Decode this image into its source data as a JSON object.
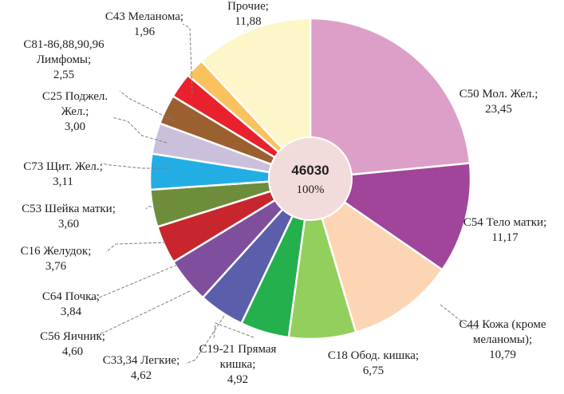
{
  "chart_data": {
    "type": "pie",
    "variant": "doughnut",
    "center": {
      "total": "46030",
      "percent": "100%"
    },
    "slices": [
      {
        "name_lines": [
          "C50 Мол. Жел.;"
        ],
        "value": "23,45",
        "share": 23.45,
        "color": "#dca0c8"
      },
      {
        "name_lines": [
          "C54 Тело матки;"
        ],
        "value": "11,17",
        "share": 11.17,
        "color": "#a1459a"
      },
      {
        "name_lines": [
          "C44 Кожа (кроме",
          "меланомы);"
        ],
        "value": "10,79",
        "share": 10.79,
        "color": "#fcd5b5"
      },
      {
        "name_lines": [
          "C18 Обод. кишка;"
        ],
        "value": "6,75",
        "share": 6.75,
        "color": "#92cf5c"
      },
      {
        "name_lines": [
          "C19-21 Прямая",
          "кишка;"
        ],
        "value": "4,92",
        "share": 4.92,
        "color": "#24b04c"
      },
      {
        "name_lines": [
          "C33,34 Легкие;"
        ],
        "value": "4,62",
        "share": 4.62,
        "color": "#5b5eaa"
      },
      {
        "name_lines": [
          "C56 Яичник;"
        ],
        "value": "4,60",
        "share": 4.6,
        "color": "#7f4f9e"
      },
      {
        "name_lines": [
          "C64 Почка;"
        ],
        "value": "3,84",
        "share": 3.84,
        "color": "#c8262d"
      },
      {
        "name_lines": [
          "C16 Желудок;"
        ],
        "value": "3,76",
        "share": 3.76,
        "color": "#6e8d3b"
      },
      {
        "name_lines": [
          "C53 Шейка матки;"
        ],
        "value": "3,60",
        "share": 3.6,
        "color": "#22aee4"
      },
      {
        "name_lines": [
          "C73 Щит. Жел.;"
        ],
        "value": "3,11",
        "share": 3.11,
        "color": "#cbc0dc"
      },
      {
        "name_lines": [
          "C25 Поджел.",
          "Жел.;"
        ],
        "value": "3,00",
        "share": 3.0,
        "color": "#9a6030"
      },
      {
        "name_lines": [
          "C81-86,88,90,96",
          "Лимфомы;"
        ],
        "value": "2,55",
        "share": 2.55,
        "color": "#e8212c"
      },
      {
        "name_lines": [
          "C43 Меланома;"
        ],
        "value": "1,96",
        "share": 1.96,
        "color": "#f9c25e"
      },
      {
        "name_lines": [
          "Прочие;"
        ],
        "value": "11,88",
        "share": 11.88,
        "color": "#fcf6c8"
      }
    ],
    "center_color": "#f2dcdb",
    "legend": "none"
  }
}
